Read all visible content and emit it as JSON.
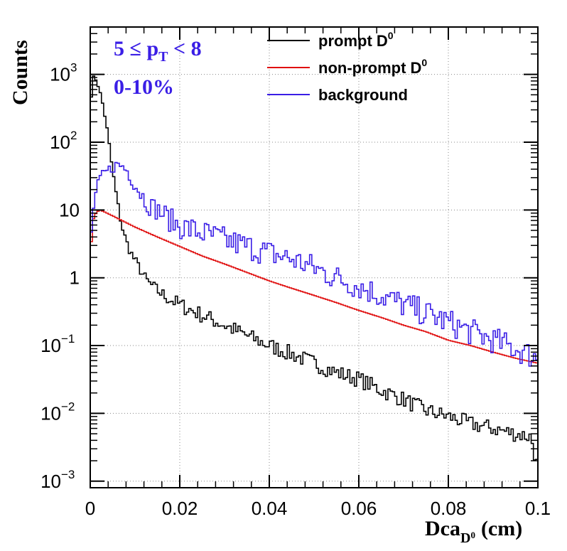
{
  "chart_data": {
    "type": "line",
    "subtype": "step-histogram",
    "title": "",
    "xlabel": "Dca",
    "xlabel_subscript": "D",
    "xlabel_subsubscript": "0",
    "xlabel_unit": "(cm)",
    "ylabel": "Counts",
    "xlim": [
      0,
      0.1
    ],
    "ylim": [
      0.0008,
      5000
    ],
    "y_scale": "log",
    "grid": true,
    "legend_position": "top-right",
    "x_ticks": [
      "0",
      "0.02",
      "0.04",
      "0.06",
      "0.08",
      "0.1"
    ],
    "y_ticks": [
      {
        "base": "10",
        "exp": "−3",
        "value": 0.001
      },
      {
        "base": "10",
        "exp": "−2",
        "value": 0.01
      },
      {
        "base": "10",
        "exp": "−1",
        "value": 0.1
      },
      {
        "base": "1",
        "exp": "",
        "value": 1
      },
      {
        "base": "10",
        "exp": "",
        "value": 10
      },
      {
        "base": "10",
        "exp": "2",
        "value": 100
      },
      {
        "base": "10",
        "exp": "3",
        "value": 1000
      }
    ],
    "annotations": {
      "pt_prefix": "5 ≤ p",
      "pt_sub": "T",
      "pt_suffix": " < 8",
      "centrality": "0-10%",
      "color": "#3a1ee6"
    },
    "series": [
      {
        "name": "prompt D",
        "name_sup": "0",
        "color": "#000000",
        "points": [
          [
            0.0,
            300
          ],
          [
            0.0005,
            850
          ],
          [
            0.001,
            900
          ],
          [
            0.0015,
            820
          ],
          [
            0.002,
            600
          ],
          [
            0.003,
            320
          ],
          [
            0.004,
            120
          ],
          [
            0.005,
            38
          ],
          [
            0.006,
            14
          ],
          [
            0.007,
            6
          ],
          [
            0.008,
            3.5
          ],
          [
            0.009,
            2.4
          ],
          [
            0.01,
            1.8
          ],
          [
            0.011,
            1.4
          ],
          [
            0.012,
            1.05
          ],
          [
            0.013,
            0.85
          ],
          [
            0.015,
            0.65
          ],
          [
            0.017,
            0.52
          ],
          [
            0.02,
            0.4
          ],
          [
            0.025,
            0.28
          ],
          [
            0.03,
            0.2
          ],
          [
            0.035,
            0.14
          ],
          [
            0.04,
            0.1
          ],
          [
            0.045,
            0.075
          ],
          [
            0.05,
            0.055
          ],
          [
            0.055,
            0.04
          ],
          [
            0.06,
            0.032
          ],
          [
            0.065,
            0.022
          ],
          [
            0.07,
            0.016
          ],
          [
            0.075,
            0.011
          ],
          [
            0.08,
            0.009
          ],
          [
            0.085,
            0.007
          ],
          [
            0.09,
            0.006
          ],
          [
            0.095,
            0.005
          ],
          [
            0.0985,
            0.0045
          ],
          [
            0.1,
            0.0015
          ]
        ]
      },
      {
        "name": "non-prompt D",
        "name_sup": "0",
        "color": "#e01010",
        "points": [
          [
            0.0,
            1.8
          ],
          [
            0.0005,
            6.5
          ],
          [
            0.001,
            8.5
          ],
          [
            0.002,
            10
          ],
          [
            0.003,
            9.5
          ],
          [
            0.005,
            8.2
          ],
          [
            0.01,
            5.6
          ],
          [
            0.015,
            4.0
          ],
          [
            0.02,
            2.9
          ],
          [
            0.025,
            2.1
          ],
          [
            0.03,
            1.6
          ],
          [
            0.035,
            1.2
          ],
          [
            0.04,
            0.9
          ],
          [
            0.045,
            0.7
          ],
          [
            0.05,
            0.55
          ],
          [
            0.055,
            0.43
          ],
          [
            0.06,
            0.33
          ],
          [
            0.065,
            0.26
          ],
          [
            0.07,
            0.2
          ],
          [
            0.075,
            0.16
          ],
          [
            0.08,
            0.12
          ],
          [
            0.085,
            0.1
          ],
          [
            0.09,
            0.08
          ],
          [
            0.095,
            0.065
          ],
          [
            0.1,
            0.055
          ]
        ]
      },
      {
        "name": "background",
        "name_sup": "",
        "color": "#3a1ee6",
        "points": [
          [
            0.0,
            2.5
          ],
          [
            0.0005,
            8
          ],
          [
            0.001,
            15
          ],
          [
            0.002,
            28
          ],
          [
            0.003,
            34
          ],
          [
            0.004,
            38
          ],
          [
            0.005,
            43
          ],
          [
            0.006,
            46
          ],
          [
            0.007,
            45
          ],
          [
            0.008,
            40
          ],
          [
            0.009,
            32
          ],
          [
            0.01,
            24
          ],
          [
            0.011,
            19
          ],
          [
            0.012,
            15
          ],
          [
            0.013,
            12
          ],
          [
            0.014,
            11
          ],
          [
            0.015,
            10
          ],
          [
            0.016,
            9
          ],
          [
            0.017,
            8
          ],
          [
            0.018,
            7
          ],
          [
            0.02,
            5.8
          ],
          [
            0.025,
            4.6
          ],
          [
            0.03,
            3.6
          ],
          [
            0.035,
            2.9
          ],
          [
            0.04,
            2.3
          ],
          [
            0.045,
            1.9
          ],
          [
            0.05,
            1.4
          ],
          [
            0.055,
            1.0
          ],
          [
            0.06,
            0.75
          ],
          [
            0.065,
            0.55
          ],
          [
            0.07,
            0.4
          ],
          [
            0.075,
            0.3
          ],
          [
            0.08,
            0.22
          ],
          [
            0.085,
            0.16
          ],
          [
            0.09,
            0.12
          ],
          [
            0.095,
            0.09
          ],
          [
            0.1,
            0.065
          ]
        ]
      }
    ]
  }
}
